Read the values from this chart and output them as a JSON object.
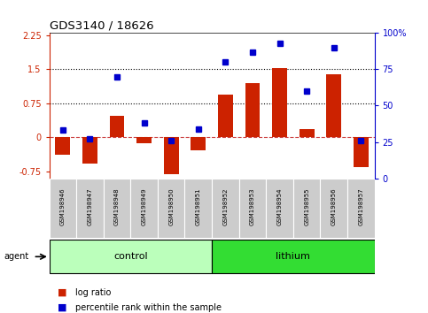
{
  "title": "GDS3140 / 18626",
  "samples": [
    "GSM198946",
    "GSM198947",
    "GSM198948",
    "GSM198949",
    "GSM198950",
    "GSM198951",
    "GSM198952",
    "GSM198953",
    "GSM198954",
    "GSM198955",
    "GSM198956",
    "GSM198957"
  ],
  "log_ratio": [
    -0.38,
    -0.58,
    0.48,
    -0.12,
    -0.8,
    -0.28,
    0.95,
    1.2,
    1.52,
    0.18,
    1.38,
    -0.65
  ],
  "percentile_rank": [
    33,
    27,
    70,
    38,
    26,
    34,
    80,
    87,
    93,
    60,
    90,
    26
  ],
  "bar_color": "#cc2200",
  "dot_color": "#0000cc",
  "ylim_left": [
    -0.9,
    2.3
  ],
  "ylim_right": [
    0,
    100
  ],
  "yticks_left": [
    -0.75,
    0,
    0.75,
    1.5,
    2.25
  ],
  "yticks_right": [
    0,
    25,
    50,
    75,
    100
  ],
  "hlines": [
    0.75,
    1.5
  ],
  "hline_zero": 0,
  "control_color_light": "#ccffcc",
  "control_color": "#aaddaa",
  "lithium_color": "#44ee44",
  "group_border": "#000000",
  "agent_label": "agent",
  "legend_bar_label": "log ratio",
  "legend_dot_label": "percentile rank within the sample",
  "control_samples": [
    0,
    1,
    2,
    3,
    4,
    5
  ],
  "lithium_samples": [
    6,
    7,
    8,
    9,
    10,
    11
  ]
}
